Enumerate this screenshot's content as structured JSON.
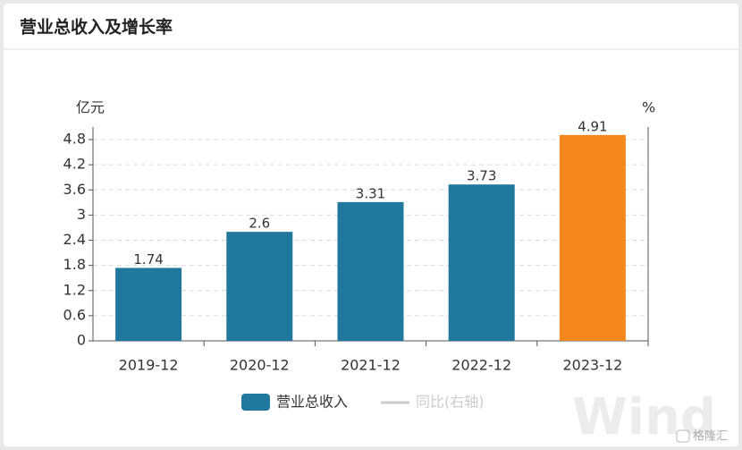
{
  "chart_data": {
    "type": "bar",
    "title": "营业总收入及增长率",
    "y_label": "亿元",
    "y2_label": "%",
    "categories": [
      "2019-12",
      "2020-12",
      "2021-12",
      "2022-12",
      "2023-12"
    ],
    "series": [
      {
        "name": "营业总收入",
        "color": "#21789f",
        "colors": [
          "#21789f",
          "#21789f",
          "#21789f",
          "#21789f",
          "#f5871f"
        ],
        "values": [
          1.74,
          2.6,
          3.31,
          3.73,
          4.91
        ]
      },
      {
        "name": "同比(右轴)",
        "color": "#cccccc",
        "axis": "y2",
        "values": [
          null,
          null,
          null,
          null,
          null
        ]
      }
    ],
    "ylim": [
      0,
      5.1
    ],
    "yticks": [
      0,
      0.6,
      1.2,
      1.8,
      2.4,
      3,
      3.6,
      4.2,
      4.8
    ],
    "grid": true,
    "watermark": "Wind",
    "logo": "格隆汇"
  }
}
